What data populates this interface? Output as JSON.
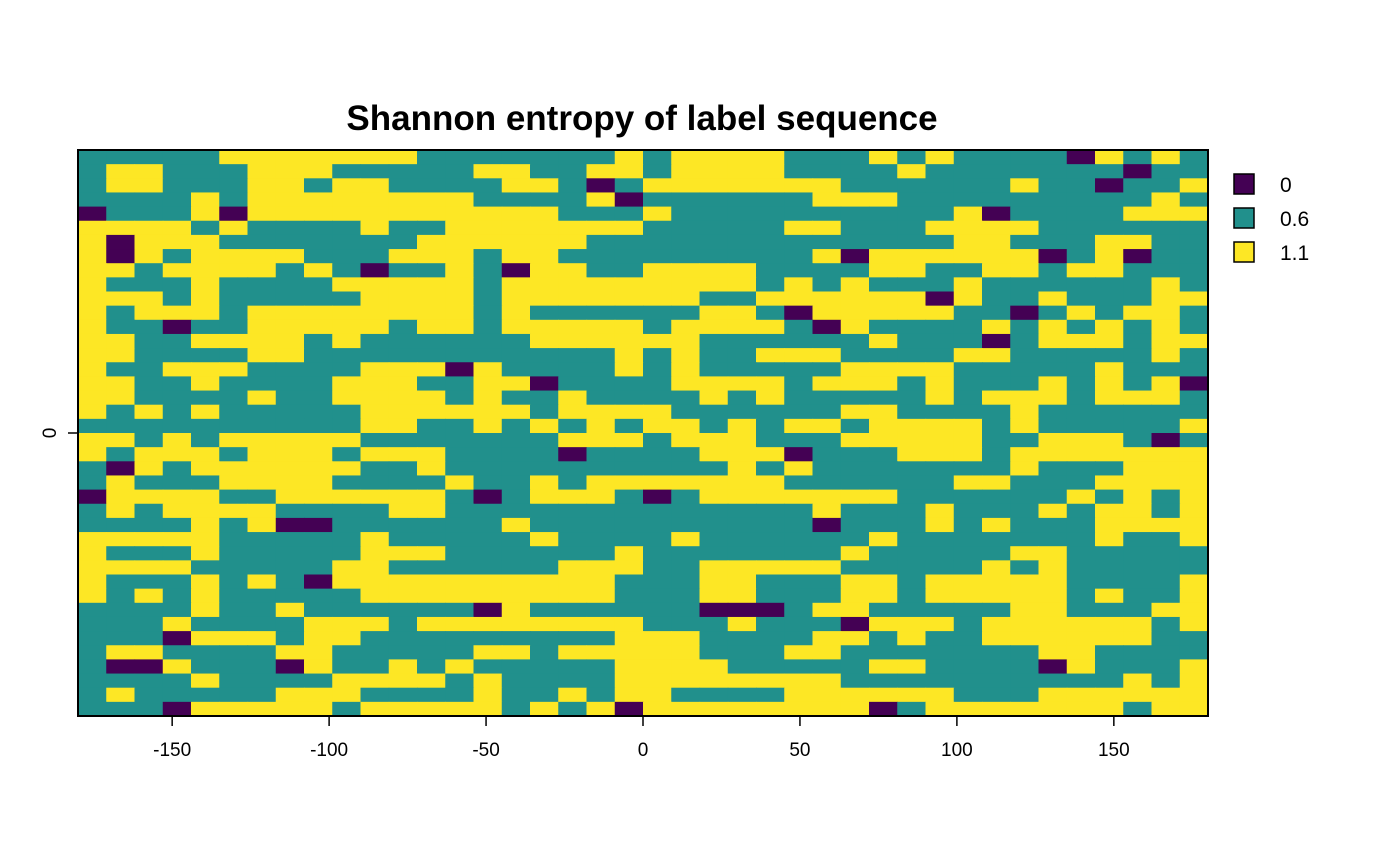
{
  "chart_data": {
    "type": "heatmap",
    "title": "Shannon entropy of label sequence",
    "xlabel": "",
    "ylabel": "",
    "xlim": [
      -180,
      180
    ],
    "x_ticks": [
      "-150",
      "-100",
      "-50",
      "0",
      "50",
      "100",
      "150"
    ],
    "y_ticks": [
      "0"
    ],
    "legend_position": "top-right",
    "legend": [
      {
        "label": "0",
        "color": "#440154"
      },
      {
        "label": "0.6",
        "color": "#21908C"
      },
      {
        "label": "1.1",
        "color": "#FDE725"
      }
    ],
    "grid_rows": 40,
    "grid_cols": 40,
    "value_levels": [
      0,
      0.6,
      1.1
    ],
    "cells": [
      "1111122222221111111212222111212111102121",
      "1221112221111122112212222111121111111011",
      "1221112212211112210122222221111112110112",
      "1111212222222211112011111122211111111121",
      "0111202222222222211121111111111201111222",
      "2222121111211222222211111221112222111111",
      "2022211111112222221111111111111221112211",
      "2021222211122212211111111120222222012011",
      "2212222121011210221122221111221122122111",
      "2111211112222212222222221212111211111121",
      "2221211111222212222222112222220211211122",
      "2122212222222212111111221022222110121221",
      "2110112222212212222212222102111121212121",
      "2211222212111111222222111111211101222122",
      "2211112211111111111212112221111221111121",
      "2112221111222021111212111112222111112111",
      "2211211112221122011112222122212111212120",
      "2211112112222121121111212111112122212221",
      "2121211111222222122221111112211112111111",
      "1111111111221121212122121221222212111112",
      "2212122222111111122212221112222211222101",
      "2122212221222111101111222011122212222222",
      "1021222222112111111111121211111112111222",
      "1211122221111211212222222111111221112222",
      "0222211222222101222101222222211111121212",
      "1212222111122111111111111121112111212212",
      "1111212001111112111111111101112121112222",
      "2222211111211111211112111111211111112112",
      "2111211111222111111211111112111112211111",
      "2222111112211111122211222221111121211111",
      "2111212102222222222111221112212222211112",
      "2121211111222222222111221112212222212112",
      "1111211211111102111111000122111112211122",
      "1112111122212222222211121110222122222212",
      "1110222122111111111222111122121122222211",
      "1221111221111122122222111221111111221111",
      "1002111021121211111222211111221111021112",
      "1111211112222121111222222221111111111212",
      "1211111222111121121221111222222111222222",
      "1110222221222221212022222222012222222122"
    ]
  }
}
